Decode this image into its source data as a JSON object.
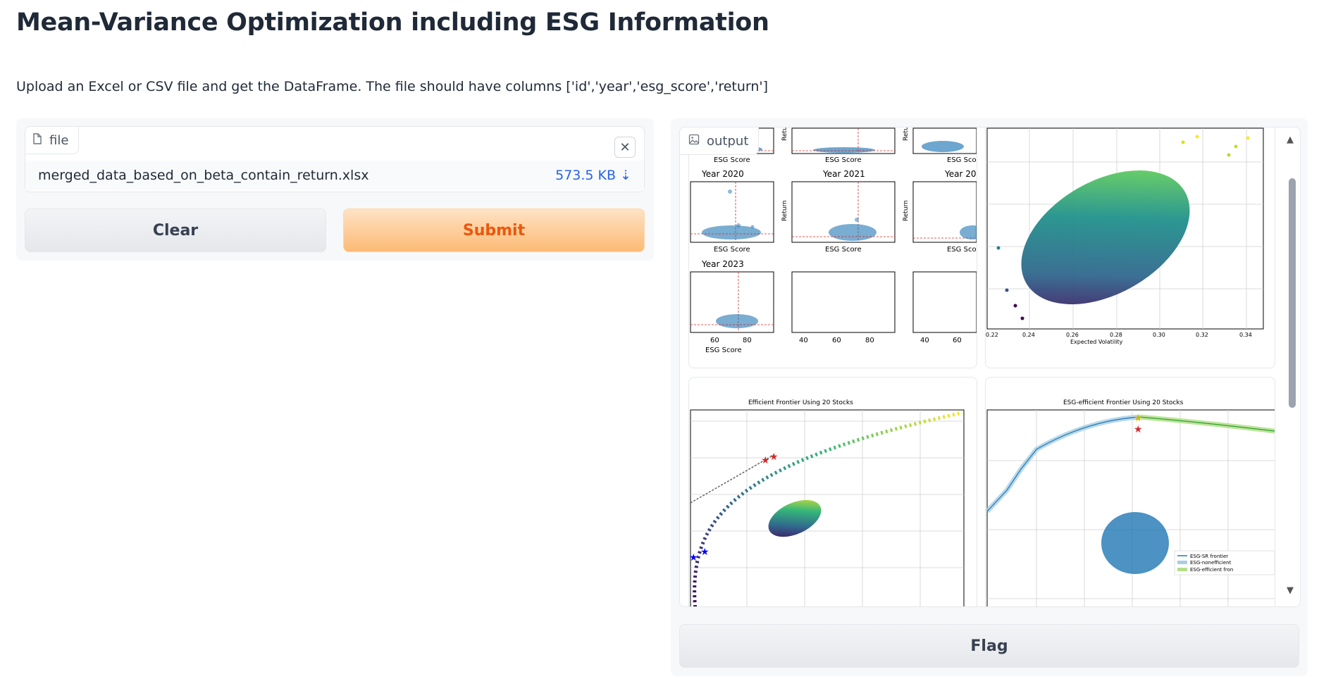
{
  "page": {
    "title": "Mean-Variance Optimization including ESG Information",
    "description": "Upload an Excel or CSV file and get the DataFrame. The file should have columns ['id','year','esg_score','return']"
  },
  "input": {
    "label": "file",
    "file_name": "merged_data_based_on_beta_contain_return.xlsx",
    "file_size": "573.5 KB ⇣",
    "clear_label": "Clear",
    "submit_label": "Submit"
  },
  "output": {
    "label": "output",
    "flag_label": "Flag",
    "year_grid": {
      "year_labels": [
        "Year 2020",
        "Year 2021",
        "Year 20",
        "Year 2023"
      ],
      "axis_label": "ESG Score",
      "axis_label_cut": "ESG Sco",
      "return_label": "Return",
      "return_label_cut": "Retu",
      "return_label_cut2": "Retu",
      "ticks_a": [
        "60",
        "80"
      ],
      "ticks_b": [
        "40",
        "60",
        "80"
      ],
      "ticks_c": [
        "40",
        "60"
      ]
    },
    "volatility_plot": {
      "xlabel": "Expected Volatility",
      "x_ticks": [
        "0.22",
        "0.24",
        "0.26",
        "0.28",
        "0.30",
        "0.32",
        "0.34"
      ]
    },
    "frontier_plot": {
      "title": "Efficient Frontier Using 20 Stocks"
    },
    "esg_frontier_plot": {
      "title": "ESG-efficient Frontier Using 20 Stocks",
      "legend": [
        "ESG-SR frontier",
        "ESG-nonefficient",
        "ESG-efficient fron"
      ]
    }
  },
  "colors": {
    "submit_text": "#ea580c",
    "scatter_blue": "#1f77b4",
    "star_red": "#d62728",
    "star_blue": "#0000ff",
    "star_gold": "#d4b400"
  },
  "icons": [
    "file-icon",
    "close-icon",
    "image-icon",
    "chevron-up-icon",
    "chevron-down-icon"
  ]
}
